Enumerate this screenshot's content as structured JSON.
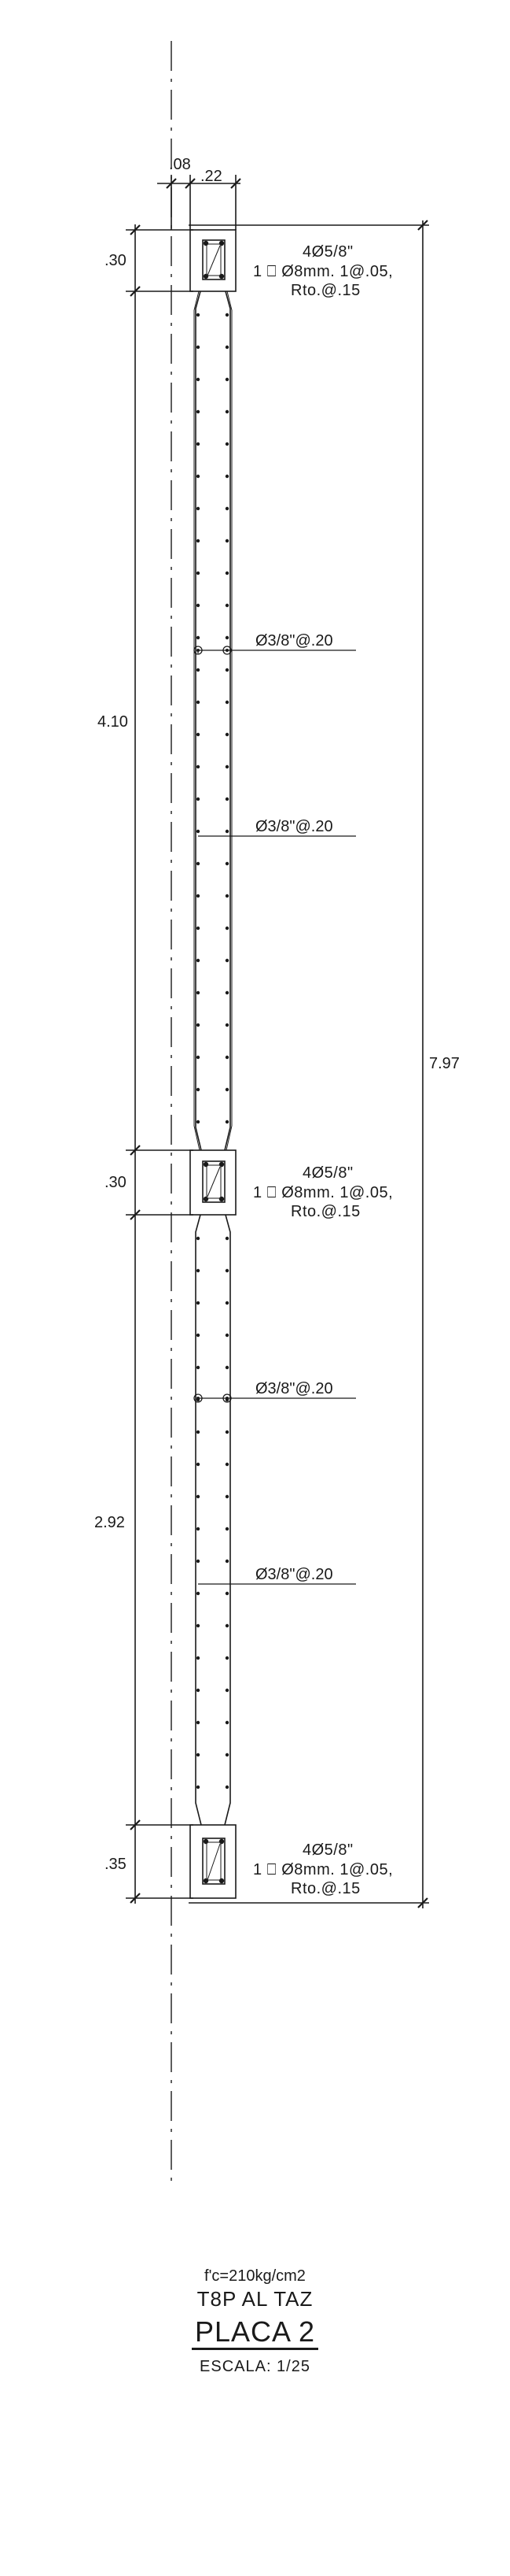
{
  "drawing": {
    "dims": {
      "top_offset": ".08",
      "top_width": ".22",
      "seg_top_head": ".30",
      "seg_upper_web": "4.10",
      "seg_mid_head": ".30",
      "seg_lower_web": "2.92",
      "seg_bottom_head": ".35",
      "total_height": "7.97"
    },
    "notes": {
      "top": {
        "bars": "4Ø5/8\"",
        "stirrup": "1 ⎕ Ø8mm.  1@.05,",
        "rest": "Rto.@.15"
      },
      "mid": {
        "bars": "4Ø5/8\"",
        "stirrup": "1 ⎕ Ø8mm.  1@.05,",
        "rest": "Rto.@.15"
      },
      "bottom": {
        "bars": "4Ø5/8\"",
        "stirrup": "1 ⎕ Ø8mm.  1@.05,",
        "rest": "Rto.@.15"
      },
      "web_1": "Ø3/8\"@.20",
      "web_2": "Ø3/8\"@.20",
      "web_3": "Ø3/8\"@.20",
      "web_4": "Ø3/8\"@.20"
    }
  },
  "title_block": {
    "concrete": "f'c=210kg/cm2",
    "subtitle": "T8P AL TAZ",
    "title": "PLACA 2",
    "scale": "ESCALA:  1/25"
  }
}
